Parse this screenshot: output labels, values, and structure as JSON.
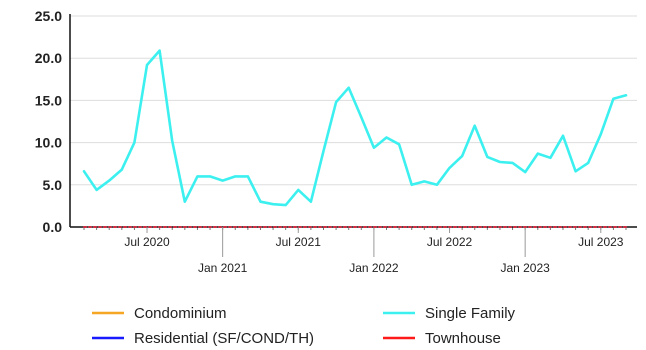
{
  "chart_data": {
    "type": "line",
    "x": [
      "2020-02",
      "2020-03",
      "2020-04",
      "2020-05",
      "2020-06",
      "2020-07",
      "2020-08",
      "2020-09",
      "2020-10",
      "2020-11",
      "2020-12",
      "2021-01",
      "2021-02",
      "2021-03",
      "2021-04",
      "2021-05",
      "2021-06",
      "2021-07",
      "2021-08",
      "2021-09",
      "2021-10",
      "2021-11",
      "2021-12",
      "2022-01",
      "2022-02",
      "2022-03",
      "2022-04",
      "2022-05",
      "2022-06",
      "2022-07",
      "2022-08",
      "2022-09",
      "2022-10",
      "2022-11",
      "2022-12",
      "2023-01",
      "2023-02",
      "2023-03",
      "2023-04",
      "2023-05",
      "2023-06",
      "2023-07",
      "2023-08",
      "2023-09"
    ],
    "series": [
      {
        "name": "Condominium",
        "color": "#f5a623",
        "values": [
          0,
          0,
          0,
          0,
          0,
          0,
          0,
          0,
          0,
          0,
          0,
          0,
          0,
          0,
          0,
          0,
          0,
          0,
          0,
          0,
          0,
          0,
          0,
          0,
          0,
          0,
          0,
          0,
          0,
          0,
          0,
          0,
          0,
          0,
          0,
          0,
          0,
          0,
          0,
          0,
          0,
          0,
          0,
          0
        ]
      },
      {
        "name": "Single Family",
        "color": "#3df0f0",
        "values": [
          6.6,
          4.4,
          5.5,
          6.8,
          10.0,
          19.2,
          20.9,
          10.2,
          3.0,
          6.0,
          6.0,
          5.5,
          6.0,
          6.0,
          3.0,
          2.7,
          2.6,
          4.4,
          3.0,
          9.0,
          14.8,
          16.5,
          13.0,
          9.4,
          10.6,
          9.8,
          5.0,
          5.4,
          5.0,
          7.0,
          8.4,
          12.0,
          8.3,
          7.7,
          7.6,
          6.5,
          8.7,
          8.2,
          10.8,
          6.6,
          7.6,
          11.0,
          15.2,
          15.6
        ]
      },
      {
        "name": "Residential (SF/COND/TH)",
        "color": "#1a1aff",
        "values": [
          0,
          0,
          0,
          0,
          0,
          0,
          0,
          0,
          0,
          0,
          0,
          0,
          0,
          0,
          0,
          0,
          0,
          0,
          0,
          0,
          0,
          0,
          0,
          0,
          0,
          0,
          0,
          0,
          0,
          0,
          0,
          0,
          0,
          0,
          0,
          0,
          0,
          0,
          0,
          0,
          0,
          0,
          0,
          0
        ]
      },
      {
        "name": "Townhouse",
        "color": "#ff1a1a",
        "values": [
          0,
          0,
          0,
          0,
          0,
          0,
          0,
          0,
          0,
          0,
          0,
          0,
          0,
          0,
          0,
          0,
          0,
          0,
          0,
          0,
          0,
          0,
          0,
          0,
          0,
          0,
          0,
          0,
          0,
          0,
          0,
          0,
          0,
          0,
          0,
          0,
          0,
          0,
          0,
          0,
          0,
          0,
          0,
          0
        ]
      }
    ],
    "x_tick_labels": [
      {
        "label": "Jul 2020",
        "x": "2020-07",
        "row": 1
      },
      {
        "label": "Jan 2021",
        "x": "2021-01",
        "row": 2
      },
      {
        "label": "Jul 2021",
        "x": "2021-07",
        "row": 1
      },
      {
        "label": "Jan 2022",
        "x": "2022-01",
        "row": 2
      },
      {
        "label": "Jul 2022",
        "x": "2022-07",
        "row": 1
      },
      {
        "label": "Jan 2023",
        "x": "2023-01",
        "row": 2
      },
      {
        "label": "Jul 2023",
        "x": "2023-07",
        "row": 1
      }
    ],
    "y_ticks": [
      "0.0",
      "5.0",
      "10.0",
      "15.0",
      "20.0",
      "25.0"
    ],
    "ylim": [
      0,
      25
    ],
    "grid": true,
    "legend_placement": "bottom",
    "title": "",
    "xlabel": "",
    "ylabel": ""
  }
}
